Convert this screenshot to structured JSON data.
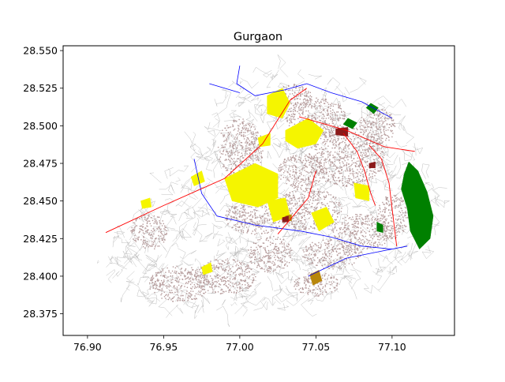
{
  "figure": {
    "title": "Gurgaon"
  },
  "chart_data": {
    "type": "scatter",
    "title": "Gurgaon",
    "xlabel": "",
    "ylabel": "",
    "xlim": [
      76.884,
      77.141
    ],
    "ylim": [
      28.3606,
      28.5532
    ],
    "xticks": [
      "76.90",
      "76.95",
      "77.00",
      "77.05",
      "77.10"
    ],
    "xtick_values": [
      76.9,
      76.95,
      77.0,
      77.05,
      77.1
    ],
    "yticks": [
      "28.375",
      "28.400",
      "28.425",
      "28.450",
      "28.475",
      "28.500",
      "28.525",
      "28.550"
    ],
    "ytick_values": [
      28.375,
      28.4,
      28.425,
      28.45,
      28.475,
      28.5,
      28.525,
      28.55
    ],
    "grid": false,
    "layers": [
      {
        "name": "minor roads",
        "color": "#b8b8b8"
      },
      {
        "name": "built-up areas",
        "color": "#b59a9a"
      },
      {
        "name": "commercial / industrial zones",
        "color": "#f5f500"
      },
      {
        "name": "parks / forest",
        "color": "#008000"
      },
      {
        "name": "water bodies",
        "color": "#b8860b"
      },
      {
        "name": "dense buildings",
        "color": "#8b1a1a"
      },
      {
        "name": "major roads",
        "color": "#0000ff"
      },
      {
        "name": "highway",
        "color": "#ff0000"
      }
    ],
    "features": {
      "highway": [
        [
          [
            76.912,
            28.429
          ],
          [
            76.95,
            28.447
          ],
          [
            76.99,
            28.465
          ],
          [
            77.015,
            28.488
          ],
          [
            77.033,
            28.517
          ],
          [
            77.044,
            28.525
          ]
        ],
        [
          [
            77.039,
            28.506
          ],
          [
            77.07,
            28.497
          ],
          [
            77.095,
            28.486
          ],
          [
            77.115,
            28.483
          ]
        ],
        [
          [
            77.085,
            28.487
          ],
          [
            77.093,
            28.478
          ],
          [
            77.098,
            28.462
          ],
          [
            77.1,
            28.445
          ],
          [
            77.103,
            28.42
          ]
        ],
        [
          [
            77.068,
            28.495
          ],
          [
            77.077,
            28.483
          ],
          [
            77.082,
            28.47
          ],
          [
            77.086,
            28.455
          ],
          [
            77.089,
            28.447
          ]
        ],
        [
          [
            77.05,
            28.47
          ],
          [
            77.045,
            28.452
          ],
          [
            77.035,
            28.44
          ],
          [
            77.025,
            28.428
          ]
        ]
      ],
      "major_roads": [
        [
          [
            76.985,
            28.44
          ],
          [
            77.01,
            28.434
          ],
          [
            77.04,
            28.43
          ],
          [
            77.06,
            28.426
          ],
          [
            77.08,
            28.42
          ],
          [
            77.1,
            28.418
          ]
        ],
        [
          [
            77.045,
            28.4
          ],
          [
            77.07,
            28.412
          ],
          [
            77.09,
            28.416
          ],
          [
            77.11,
            28.42
          ]
        ],
        [
          [
            76.97,
            28.478
          ],
          [
            76.975,
            28.455
          ],
          [
            76.985,
            28.44
          ]
        ],
        [
          [
            77.0,
            28.54
          ],
          [
            76.998,
            28.528
          ],
          [
            77.01,
            28.52
          ],
          [
            77.03,
            28.524
          ],
          [
            77.044,
            28.528
          ],
          [
            77.06,
            28.522
          ]
        ],
        [
          [
            77.06,
            28.522
          ],
          [
            77.08,
            28.516
          ],
          [
            77.1,
            28.505
          ]
        ],
        [
          [
            76.98,
            28.528
          ],
          [
            77.0,
            28.522
          ]
        ]
      ],
      "parks": [
        [
          [
            77.111,
            28.476
          ],
          [
            77.117,
            28.47
          ],
          [
            77.123,
            28.456
          ],
          [
            77.127,
            28.44
          ],
          [
            77.125,
            28.425
          ],
          [
            77.118,
            28.418
          ],
          [
            77.112,
            28.43
          ],
          [
            77.11,
            28.445
          ],
          [
            77.106,
            28.458
          ],
          [
            77.108,
            28.468
          ]
        ],
        [
          [
            77.083,
            28.512
          ],
          [
            77.088,
            28.508
          ],
          [
            77.091,
            28.512
          ],
          [
            77.086,
            28.515
          ]
        ],
        [
          [
            77.068,
            28.501
          ],
          [
            77.074,
            28.498
          ],
          [
            77.077,
            28.502
          ],
          [
            77.071,
            28.505
          ]
        ],
        [
          [
            77.09,
            28.436
          ],
          [
            77.094,
            28.434
          ],
          [
            77.094,
            28.429
          ],
          [
            77.09,
            28.43
          ]
        ]
      ],
      "commercial": [
        [
          [
            77.03,
            28.497
          ],
          [
            77.045,
            28.505
          ],
          [
            77.055,
            28.497
          ],
          [
            77.05,
            28.488
          ],
          [
            77.038,
            28.485
          ],
          [
            77.03,
            28.49
          ]
        ],
        [
          [
            76.99,
            28.465
          ],
          [
            77.01,
            28.475
          ],
          [
            77.025,
            28.468
          ],
          [
            77.025,
            28.452
          ],
          [
            77.012,
            28.446
          ],
          [
            76.995,
            28.45
          ]
        ],
        [
          [
            77.018,
            28.52
          ],
          [
            77.028,
            28.525
          ],
          [
            77.033,
            28.515
          ],
          [
            77.028,
            28.505
          ],
          [
            77.018,
            28.508
          ]
        ],
        [
          [
            77.018,
            28.45
          ],
          [
            77.03,
            28.452
          ],
          [
            77.033,
            28.44
          ],
          [
            77.022,
            28.436
          ]
        ],
        [
          [
            77.047,
            28.442
          ],
          [
            77.057,
            28.446
          ],
          [
            77.062,
            28.436
          ],
          [
            77.052,
            28.43
          ]
        ],
        [
          [
            77.075,
            28.462
          ],
          [
            77.085,
            28.46
          ],
          [
            77.085,
            28.45
          ],
          [
            77.076,
            28.452
          ]
        ],
        [
          [
            76.968,
            28.466
          ],
          [
            76.975,
            28.47
          ],
          [
            76.977,
            28.463
          ],
          [
            76.97,
            28.46
          ]
        ],
        [
          [
            76.975,
            28.406
          ],
          [
            76.981,
            28.409
          ],
          [
            76.982,
            28.403
          ],
          [
            76.976,
            28.401
          ]
        ],
        [
          [
            76.935,
            28.45
          ],
          [
            76.941,
            28.452
          ],
          [
            76.942,
            28.446
          ],
          [
            76.936,
            28.445
          ]
        ],
        [
          [
            77.012,
            28.492
          ],
          [
            77.02,
            28.495
          ],
          [
            77.02,
            28.487
          ],
          [
            77.013,
            28.486
          ]
        ]
      ],
      "water": [
        [
          [
            77.046,
            28.401
          ],
          [
            77.052,
            28.404
          ],
          [
            77.054,
            28.397
          ],
          [
            77.048,
            28.394
          ]
        ],
        [
          [
            77.03,
            28.44
          ],
          [
            77.034,
            28.441
          ],
          [
            77.034,
            28.437
          ],
          [
            77.03,
            28.436
          ]
        ]
      ],
      "dense": [
        [
          [
            77.063,
            28.498
          ],
          [
            77.071,
            28.499
          ],
          [
            77.071,
            28.493
          ],
          [
            77.063,
            28.494
          ]
        ],
        [
          [
            77.028,
            28.439
          ],
          [
            77.032,
            28.44
          ],
          [
            77.032,
            28.436
          ],
          [
            77.028,
            28.436
          ]
        ],
        [
          [
            77.085,
            28.475
          ],
          [
            77.089,
            28.476
          ],
          [
            77.089,
            28.472
          ],
          [
            77.085,
            28.472
          ]
        ]
      ],
      "builtup": [
        {
          "c": [
            77.05,
            28.505
          ],
          "r": [
            0.02,
            0.014
          ]
        },
        {
          "c": [
            77.07,
            28.48
          ],
          "r": [
            0.025,
            0.02
          ]
        },
        {
          "c": [
            77.04,
            28.47
          ],
          "r": [
            0.015,
            0.012
          ]
        },
        {
          "c": [
            77.045,
            28.445
          ],
          "r": [
            0.022,
            0.014
          ]
        },
        {
          "c": [
            77.01,
            28.44
          ],
          "r": [
            0.02,
            0.012
          ]
        },
        {
          "c": [
            77.0,
            28.485
          ],
          "r": [
            0.015,
            0.02
          ]
        },
        {
          "c": [
            77.08,
            28.43
          ],
          "r": [
            0.02,
            0.012
          ]
        },
        {
          "c": [
            77.06,
            28.415
          ],
          "r": [
            0.02,
            0.01
          ]
        },
        {
          "c": [
            77.02,
            28.415
          ],
          "r": [
            0.015,
            0.012
          ]
        },
        {
          "c": [
            76.99,
            28.4
          ],
          "r": [
            0.02,
            0.012
          ]
        },
        {
          "c": [
            76.96,
            28.395
          ],
          "r": [
            0.02,
            0.012
          ]
        },
        {
          "c": [
            76.94,
            28.43
          ],
          "r": [
            0.012,
            0.012
          ]
        },
        {
          "c": [
            77.09,
            28.5
          ],
          "r": [
            0.012,
            0.012
          ]
        },
        {
          "c": [
            77.035,
            28.52
          ],
          "r": [
            0.012,
            0.008
          ]
        },
        {
          "c": [
            77.1,
            28.44
          ],
          "r": [
            0.01,
            0.015
          ]
        },
        {
          "c": [
            77.05,
            28.395
          ],
          "r": [
            0.015,
            0.008
          ]
        }
      ],
      "minor_region": [
        [
          [
            76.905,
            28.412
          ],
          [
            76.93,
            28.44
          ],
          [
            76.955,
            28.47
          ],
          [
            76.975,
            28.49
          ],
          [
            76.985,
            28.515
          ],
          [
            77.0,
            28.535
          ],
          [
            77.03,
            28.54
          ],
          [
            77.07,
            28.525
          ],
          [
            77.1,
            28.51
          ],
          [
            77.118,
            28.485
          ],
          [
            77.128,
            28.46
          ],
          [
            77.132,
            28.43
          ],
          [
            77.12,
            28.415
          ],
          [
            77.105,
            28.405
          ],
          [
            77.085,
            28.395
          ],
          [
            77.065,
            28.385
          ],
          [
            77.04,
            28.38
          ],
          [
            77.01,
            28.378
          ],
          [
            76.98,
            28.375
          ],
          [
            76.95,
            28.38
          ],
          [
            76.93,
            28.39
          ],
          [
            76.912,
            28.4
          ]
        ]
      ]
    }
  }
}
